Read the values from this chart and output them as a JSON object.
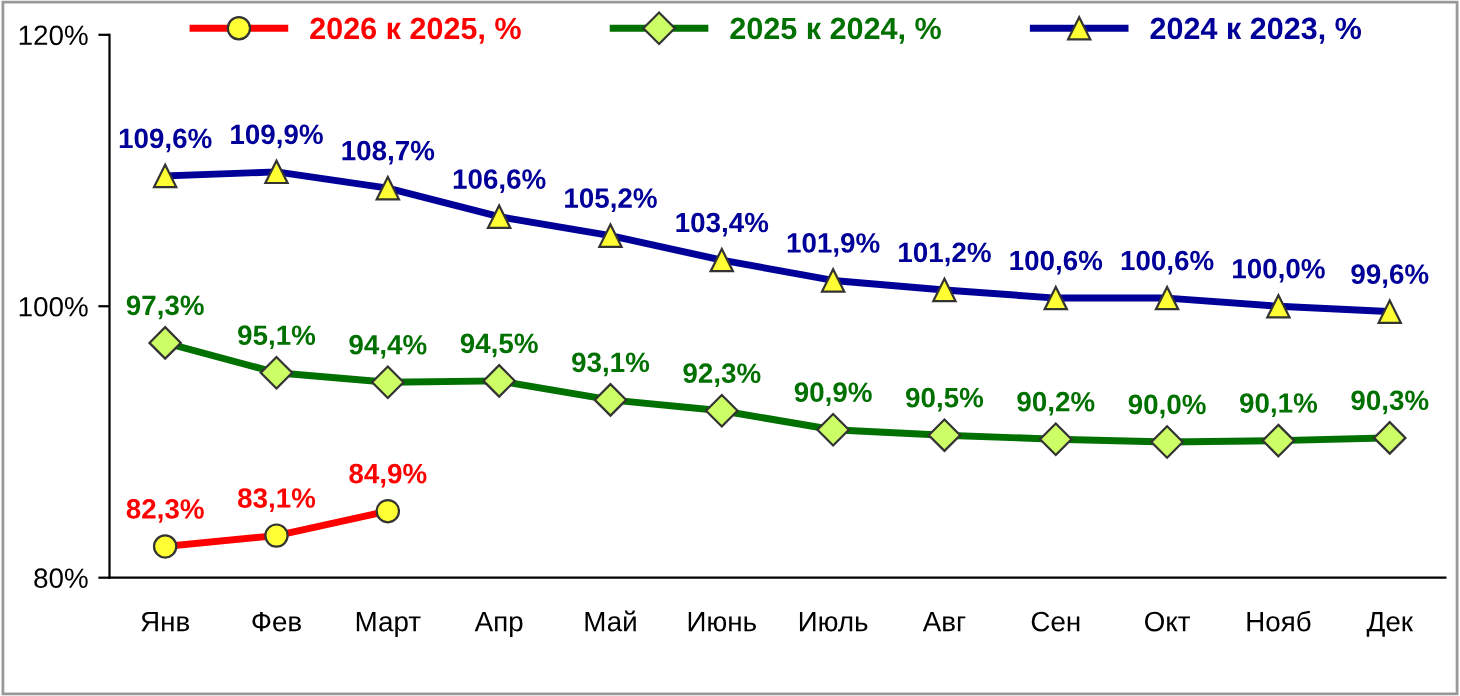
{
  "chart_data": {
    "type": "line",
    "categories": [
      "Янв",
      "Фев",
      "Март",
      "Апр",
      "Май",
      "Июнь",
      "Июль",
      "Авг",
      "Сен",
      "Окт",
      "Нояб",
      "Дек"
    ],
    "ylim": [
      80,
      120
    ],
    "yticks": [
      {
        "value": 80,
        "label": "80%"
      },
      {
        "value": 100,
        "label": "100%"
      },
      {
        "value": 120,
        "label": "120%"
      }
    ],
    "grid": false,
    "legend": "top",
    "series": [
      {
        "name": "2026 к 2025, %",
        "color": "#ff0000",
        "marker": "circle",
        "values": [
          82.3,
          83.1,
          84.9,
          null,
          null,
          null,
          null,
          null,
          null,
          null,
          null,
          null
        ],
        "value_labels": [
          "82,3%",
          "83,1%",
          "84,9%",
          null,
          null,
          null,
          null,
          null,
          null,
          null,
          null,
          null
        ]
      },
      {
        "name": "2025 к 2024, %",
        "color": "#007000",
        "marker": "diamond",
        "values": [
          97.3,
          95.1,
          94.4,
          94.5,
          93.1,
          92.3,
          90.9,
          90.5,
          90.2,
          90.0,
          90.1,
          90.3
        ],
        "value_labels": [
          "97,3%",
          "95,1%",
          "94,4%",
          "94,5%",
          "93,1%",
          "92,3%",
          "90,9%",
          "90,5%",
          "90,2%",
          "90,0%",
          "90,1%",
          "90,3%"
        ]
      },
      {
        "name": "2024 к 2023, %",
        "color": "#000099",
        "marker": "triangle",
        "values": [
          109.6,
          109.9,
          108.7,
          106.6,
          105.2,
          103.4,
          101.9,
          101.2,
          100.6,
          100.6,
          100.0,
          99.6
        ],
        "value_labels": [
          "109,6%",
          "109,9%",
          "108,7%",
          "106,6%",
          "105,2%",
          "103,4%",
          "101,9%",
          "101,2%",
          "100,6%",
          "100,6%",
          "100,0%",
          "99,6%"
        ]
      }
    ]
  }
}
